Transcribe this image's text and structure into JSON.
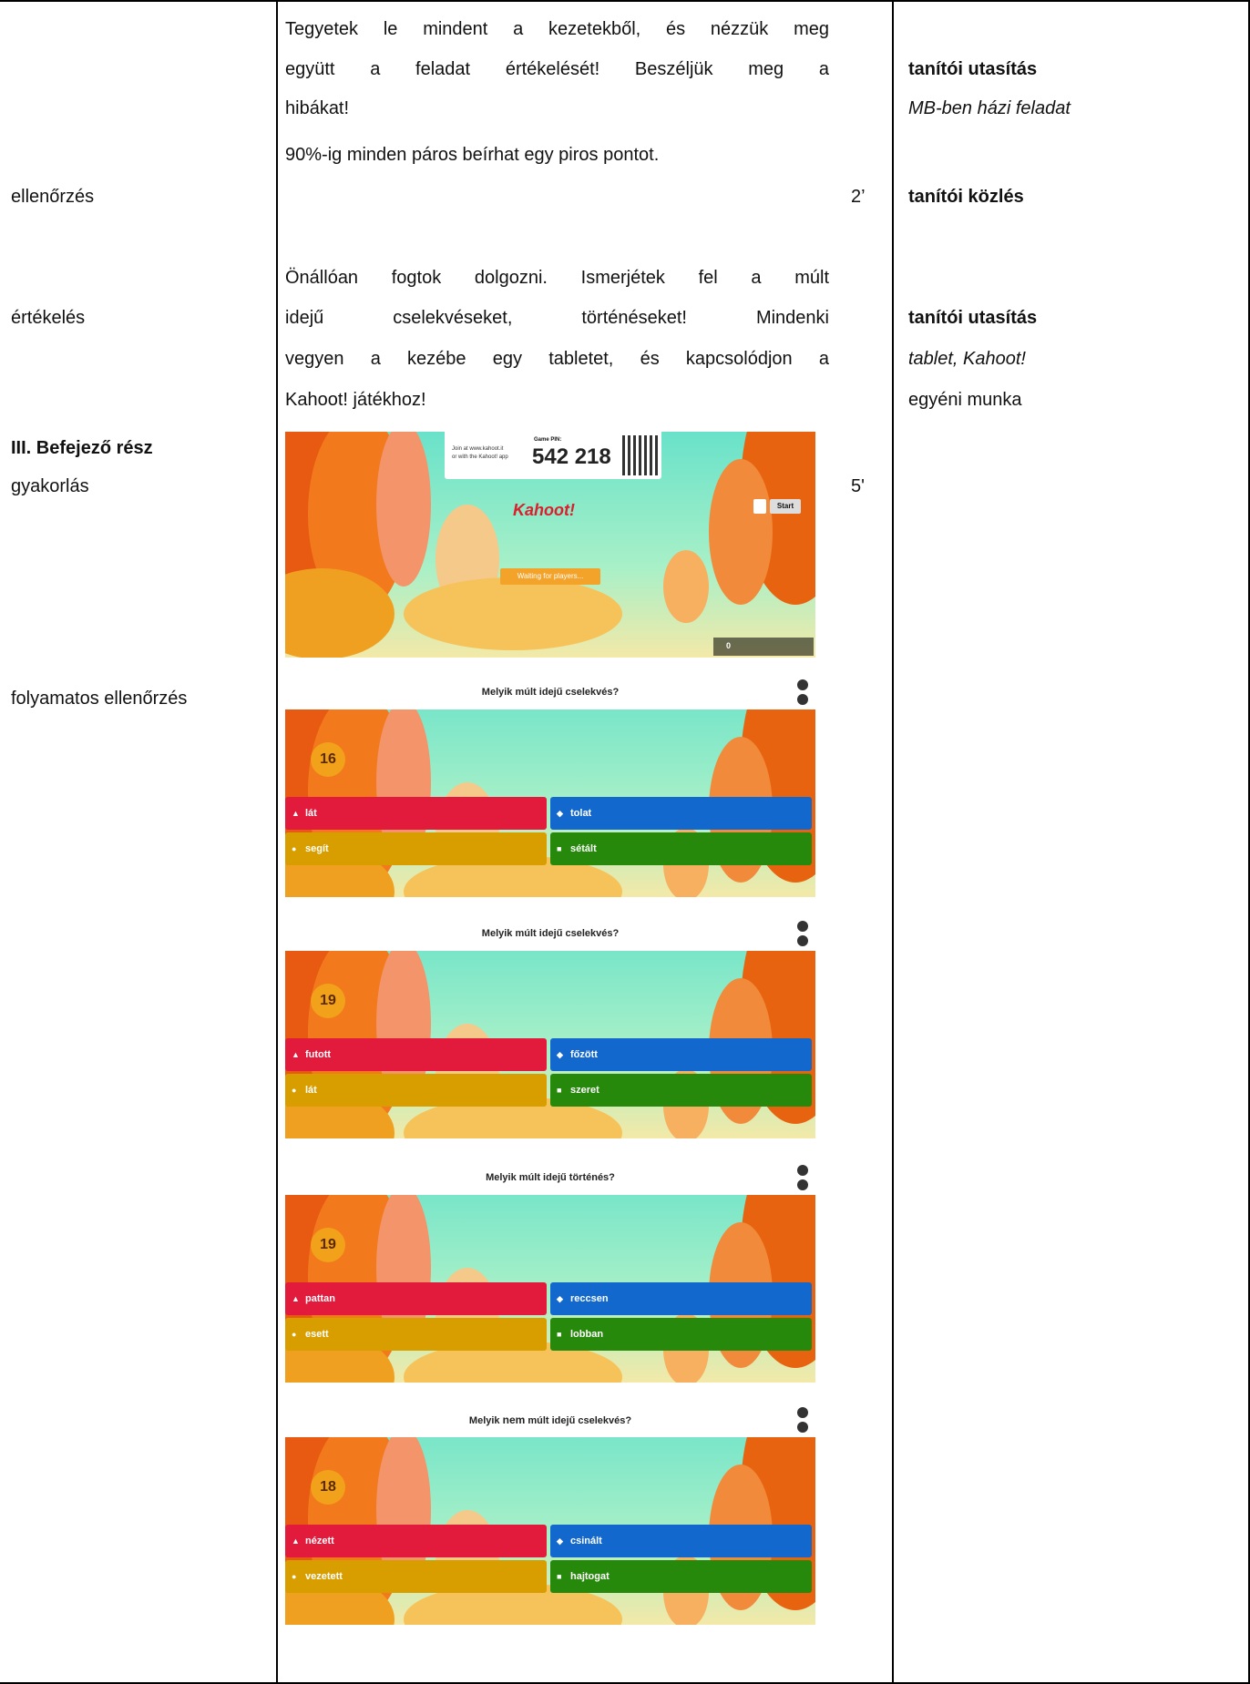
{
  "table": {
    "phase": [
      "ellenőrzés",
      "értékelés",
      "III. Befejező rész",
      "gyakorlás",
      "folyamatos ellenőrzés"
    ],
    "main": [
      "Tegyetek le mindent a kezetekből, és nézzük meg",
      "együtt a feladat értékelését! Beszéljük meg a",
      "hibákat!",
      "90%-ig minden páros beírhat egy piros pontot.",
      "Önállóan fogtok dolgozni. Ismerjétek fel a múlt",
      "idejű cselekvéseket, történéseket! Mindenki",
      "vegyen a kezébe egy tabletet, és kapcsolódjon a",
      "Kahoot! játékhoz!"
    ],
    "time": [
      "2’",
      "5'"
    ],
    "notes": [
      "tanítói utasítás",
      "MB-ben házi feladat",
      "tanítói közlés",
      "tanítói utasítás",
      "tablet, Kahoot!",
      "egyéni munka"
    ]
  },
  "lobby": {
    "join": "Join at www.kahoot.it",
    "join_app": "or with the Kahoot! app",
    "pin_label": "Game PIN:",
    "pin": "542 218",
    "logo": "Kahoot!",
    "start": "Start",
    "waiting": "Waiting for players...",
    "players": "0"
  },
  "quizzes": [
    {
      "question": [
        "Melyik múlt idejű cselekvés?"
      ],
      "timer": "16",
      "answers": [
        "lát",
        "tolat",
        "segít",
        "sétált"
      ]
    },
    {
      "question": [
        "Melyik múlt idejű cselekvés?"
      ],
      "timer": "19",
      "answers": [
        "futott",
        "főzött",
        "lát",
        "szeret"
      ]
    },
    {
      "question": [
        "Melyik múlt idejű történés?"
      ],
      "timer": "19",
      "answers": [
        "pattan",
        "reccsen",
        "esett",
        "lobban"
      ]
    },
    {
      "question": [
        "Melyik ",
        "nem",
        " múlt idejű cselekvés?"
      ],
      "timer": "18",
      "answers": [
        "nézett",
        "csinált",
        "vezetett",
        "hajtogat"
      ]
    }
  ]
}
